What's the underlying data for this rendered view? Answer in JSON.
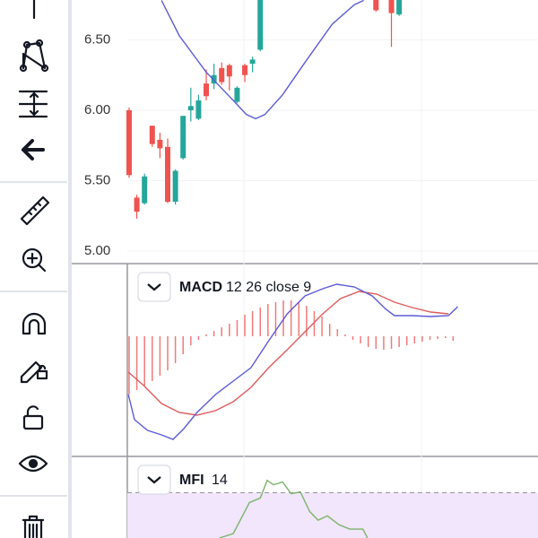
{
  "price_pane": {
    "xlim": [
      -0.23,
      53
    ],
    "ylim": [
      4.911,
      6.783
    ],
    "yticks": [
      {
        "value": 6.5,
        "label": "6.50"
      },
      {
        "value": 6.0,
        "label": "6.00"
      },
      {
        "value": 5.5,
        "label": "5.50"
      },
      {
        "value": 5.0,
        "label": "5.00"
      }
    ],
    "up_color": "#26a69a",
    "down_color": "#ef5350",
    "candles": [
      {
        "x": 0,
        "open": 6.0,
        "high": 6.02,
        "low": 5.52,
        "close": 5.54
      },
      {
        "x": 1,
        "open": 5.38,
        "high": 5.4,
        "low": 5.23,
        "close": 5.28
      },
      {
        "x": 2,
        "open": 5.34,
        "high": 5.55,
        "low": 5.33,
        "close": 5.53
      },
      {
        "x": 3,
        "open": 5.89,
        "high": 5.89,
        "low": 5.74,
        "close": 5.76
      },
      {
        "x": 4,
        "open": 5.79,
        "high": 5.84,
        "low": 5.66,
        "close": 5.73
      },
      {
        "x": 5,
        "open": 5.74,
        "high": 5.8,
        "low": 5.34,
        "close": 5.35
      },
      {
        "x": 6,
        "open": 5.35,
        "high": 5.58,
        "low": 5.33,
        "close": 5.57
      },
      {
        "x": 7,
        "open": 5.66,
        "high": 5.96,
        "low": 5.65,
        "close": 5.96
      },
      {
        "x": 8,
        "open": 6.0,
        "high": 6.16,
        "low": 5.92,
        "close": 6.03
      },
      {
        "x": 9,
        "open": 5.94,
        "high": 6.11,
        "low": 5.93,
        "close": 6.07
      },
      {
        "x": 10,
        "open": 6.19,
        "high": 6.29,
        "low": 6.07,
        "close": 6.1
      },
      {
        "x": 11,
        "open": 6.19,
        "high": 6.33,
        "low": 6.15,
        "close": 6.25
      },
      {
        "x": 12,
        "open": 6.3,
        "high": 6.34,
        "low": 6.18,
        "close": 6.2
      },
      {
        "x": 13,
        "open": 6.32,
        "high": 6.33,
        "low": 6.14,
        "close": 6.24
      },
      {
        "x": 14,
        "open": 6.06,
        "high": 6.17,
        "low": 6.05,
        "close": 6.16
      },
      {
        "x": 15,
        "open": 6.32,
        "high": 6.33,
        "low": 6.2,
        "close": 6.25
      },
      {
        "x": 16,
        "open": 6.33,
        "high": 6.38,
        "low": 6.27,
        "close": 6.36
      },
      {
        "x": 17,
        "open": 6.43,
        "high": 6.8,
        "low": 6.42,
        "close": 6.8
      },
      {
        "x": 32,
        "open": 6.8,
        "high": 6.8,
        "low": 6.7,
        "close": 6.71
      },
      {
        "x": 34,
        "open": 6.8,
        "high": 6.8,
        "low": 6.45,
        "close": 6.69
      },
      {
        "x": 35,
        "open": 6.68,
        "high": 6.8,
        "low": 6.67,
        "close": 6.8
      }
    ],
    "ma": {
      "color": "#5b5bd6",
      "x": [
        4.2,
        6.5,
        10.0,
        13.5,
        15.2,
        16.4,
        17.6,
        19.9,
        22.8,
        26.3,
        29.2,
        30.4
      ],
      "values": [
        6.78,
        6.53,
        6.27,
        6.07,
        5.97,
        5.94,
        5.97,
        6.11,
        6.34,
        6.61,
        6.75,
        6.78
      ]
    }
  },
  "macd_pane": {
    "name": "MACD",
    "params": "12 26 close 9",
    "xlim": [
      -0.23,
      53
    ],
    "ylim": [
      -0.134,
      0.08
    ],
    "macd": {
      "color": "#5b5bd6",
      "x": [
        -0.1,
        0.7,
        2.4,
        4.2,
        5.7,
        7.1,
        8.8,
        11.2,
        13.5,
        15.8,
        18.1,
        20.5,
        22.8,
        25.1,
        26.9,
        29.2,
        31.5,
        33.3,
        34.4,
        36.7,
        39.1,
        41.4,
        42.6
      ],
      "values": [
        -0.065,
        -0.093,
        -0.105,
        -0.11,
        -0.115,
        -0.103,
        -0.085,
        -0.065,
        -0.05,
        -0.035,
        -0.005,
        0.025,
        0.045,
        0.053,
        0.058,
        0.055,
        0.045,
        0.03,
        0.023,
        0.023,
        0.022,
        0.023,
        0.033
      ]
    },
    "signal": {
      "color": "#e05a5a",
      "x": [
        -0.1,
        1.9,
        4.2,
        6.5,
        8.8,
        11.2,
        13.5,
        15.8,
        18.1,
        20.5,
        22.8,
        25.1,
        27.4,
        29.8,
        32.1,
        34.4,
        36.7,
        39.1,
        41.4
      ],
      "values": [
        -0.04,
        -0.055,
        -0.075,
        -0.085,
        -0.088,
        -0.083,
        -0.073,
        -0.057,
        -0.035,
        -0.015,
        0.005,
        0.025,
        0.042,
        0.05,
        0.047,
        0.038,
        0.032,
        0.027,
        0.025
      ]
    },
    "histogram": {
      "color": "#ef7a7a",
      "values": [
        -0.065,
        -0.06,
        -0.055,
        -0.05,
        -0.044,
        -0.038,
        -0.03,
        -0.02,
        -0.01,
        -0.004,
        0.002,
        0.006,
        0.01,
        0.014,
        0.018,
        0.024,
        0.028,
        0.032,
        0.036,
        0.038,
        0.04,
        0.04,
        0.038,
        0.034,
        0.028,
        0.022,
        0.014,
        0.008,
        0.002,
        -0.004,
        -0.008,
        -0.012,
        -0.014,
        -0.015,
        -0.014,
        -0.012,
        -0.01,
        -0.008,
        -0.006,
        -0.004,
        -0.003,
        -0.002,
        -0.005
      ]
    }
  },
  "mfi_pane": {
    "name": "MFI",
    "params": "14",
    "xlim": [
      -0.23,
      53
    ],
    "ylim": [
      50,
      103.5
    ],
    "upper_band": 80,
    "band_color": "#f1e6fb",
    "line": {
      "color": "#7cb36a",
      "x": [
        11.7,
        13.5,
        14.7,
        15.6,
        17.0,
        17.9,
        18.7,
        19.9,
        21.0,
        22.2,
        23.4,
        24.5,
        25.7,
        27.2,
        28.6,
        30.3,
        30.9
      ],
      "values": [
        50,
        52.9,
        64.7,
        73.5,
        76.5,
        88.2,
        85.3,
        87.1,
        79.4,
        80.6,
        67.6,
        61.8,
        64.7,
        58.8,
        55.9,
        55.9,
        50
      ]
    }
  }
}
